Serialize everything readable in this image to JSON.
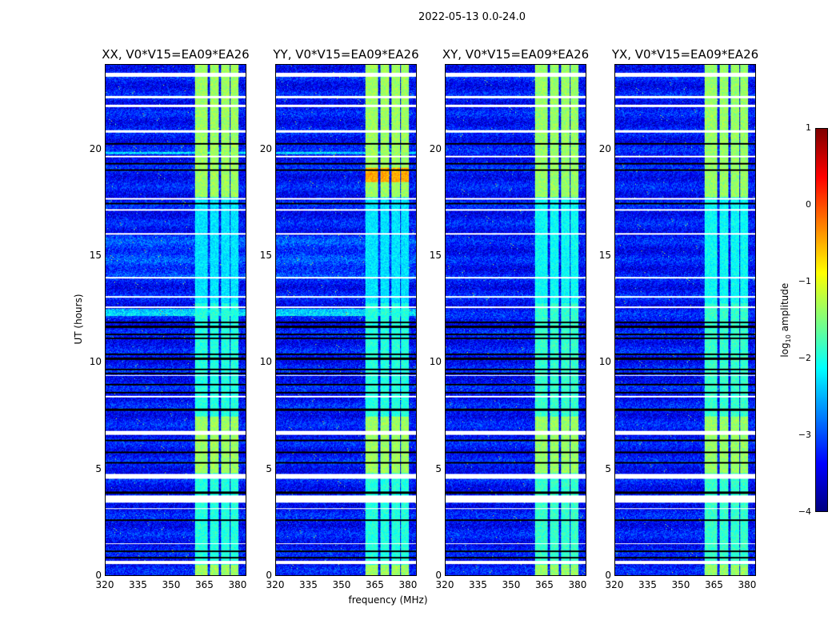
{
  "chart_data": {
    "type": "heatmap",
    "title": "2022-05-13 0.0-24.0",
    "panels": [
      {
        "title": "XX, V0*V15=EA09*EA26"
      },
      {
        "title": "YY, V0*V15=EA09*EA26"
      },
      {
        "title": "XY, V0*V15=EA09*EA26"
      },
      {
        "title": "YX, V0*V15=EA09*EA26"
      }
    ],
    "xlabel": "frequency (MHz)",
    "ylabel": "UT (hours)",
    "xlim": [
      320,
      384
    ],
    "ylim": [
      0,
      24
    ],
    "xticks": [
      320,
      335,
      350,
      365,
      380
    ],
    "yticks": [
      0,
      5,
      10,
      15,
      20
    ],
    "colorbar": {
      "label": "log",
      "label_sub": "10",
      "label_rest": " amplitude",
      "range": [
        -4,
        1
      ],
      "ticks": [
        "1",
        "0",
        "−1",
        "−2",
        "−3",
        "−4"
      ],
      "colormap": "jet"
    },
    "background_level": -3.3,
    "rfi_band_mhz": [
      [
        360.5,
        366.5
      ],
      [
        367.5,
        371.5
      ],
      [
        372.5,
        376.5
      ],
      [
        377,
        380.5
      ]
    ],
    "rfi_band_level": -1.6,
    "flagged_hours": [
      [
        23.45,
        23.65
      ],
      [
        22.45,
        22.55
      ],
      [
        22.05,
        22.15
      ],
      [
        20.85,
        20.93
      ],
      [
        19.68,
        19.75
      ],
      [
        17.68,
        17.75
      ],
      [
        17.15,
        17.22
      ],
      [
        16.05,
        16.12
      ],
      [
        13.97,
        14.03
      ],
      [
        13.08,
        13.14
      ],
      [
        12.6,
        12.65
      ],
      [
        9.38,
        9.44
      ],
      [
        8.38,
        8.44
      ],
      [
        6.62,
        6.82
      ],
      [
        4.55,
        4.78
      ],
      [
        3.45,
        3.75
      ],
      [
        3.12,
        3.18
      ],
      [
        1.47,
        1.53
      ],
      [
        0.55,
        0.68
      ]
    ],
    "dropout_hours": [
      20.3,
      19.36,
      19.06,
      17.5,
      11.9,
      11.7,
      11.35,
      11.15,
      10.4,
      10.2,
      9.7,
      9.5,
      8.98,
      8.6,
      7.8,
      6.35,
      5.8,
      5.3,
      3.9,
      2.6,
      1.15,
      0.85
    ]
  }
}
